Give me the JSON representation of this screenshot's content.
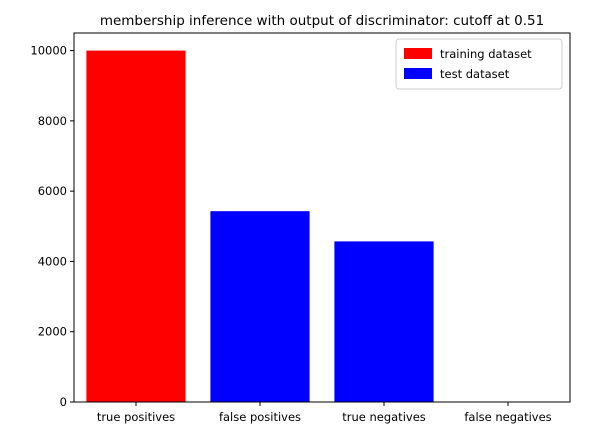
{
  "chart_data": {
    "type": "bar",
    "title": "membership inference with output of discriminator: cutoff at 0.51",
    "xlabel": "",
    "ylabel": "",
    "categories": [
      "true positives",
      "false positives",
      "true negatives",
      "false negatives"
    ],
    "values": [
      10000,
      5430,
      4570,
      0
    ],
    "bar_colors": [
      "#ff0000",
      "#0000ff",
      "#0000ff",
      "#0000ff"
    ],
    "ylim": [
      0,
      10500
    ],
    "yticks": [
      0,
      2000,
      4000,
      6000,
      8000,
      10000
    ],
    "grid": false,
    "legend": {
      "placement": "top-right",
      "entries": [
        {
          "label": "training dataset",
          "color": "#ff0000"
        },
        {
          "label": "test dataset",
          "color": "#0000ff"
        }
      ]
    }
  }
}
